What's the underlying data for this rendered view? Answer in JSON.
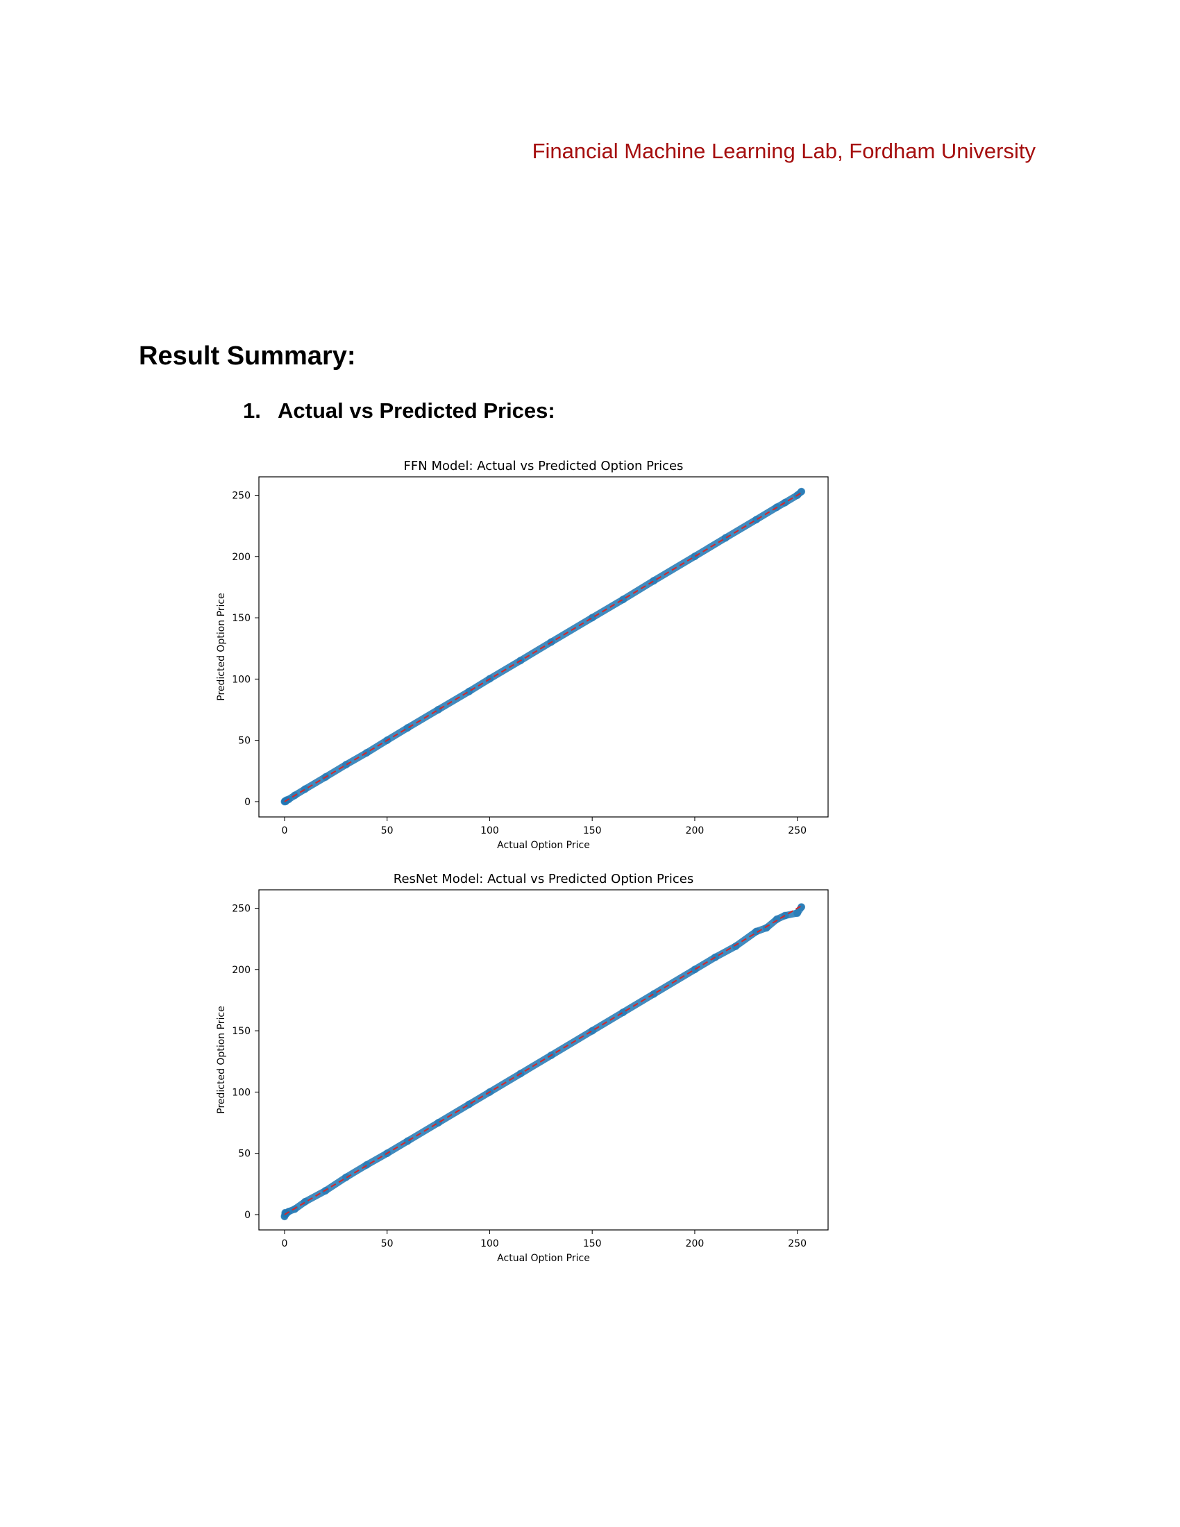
{
  "header": {
    "org": "Financial Machine Learning Lab, Fordham University"
  },
  "section": {
    "title": "Result Summary:"
  },
  "subsection": {
    "number": "1.",
    "title": "Actual vs Predicted Prices:"
  },
  "chart_data": [
    {
      "type": "scatter",
      "title": "FFN Model: Actual vs Predicted Option Prices",
      "xlabel": "Actual Option Price",
      "ylabel": "Predicted Option Price",
      "xlim": [
        -12.5,
        265
      ],
      "ylim": [
        -12.5,
        265
      ],
      "xticks": [
        0,
        50,
        100,
        150,
        200,
        250
      ],
      "yticks": [
        0,
        50,
        100,
        150,
        200,
        250
      ],
      "grid": false,
      "point_color": "#1f77b4",
      "reference_line": {
        "x": [
          0,
          252
        ],
        "y": [
          0,
          252
        ],
        "color": "#d62728",
        "style": "dashed"
      },
      "series": [
        {
          "x": [
            0,
            0.3,
            0.6,
            1,
            2,
            5,
            10,
            20,
            30,
            40,
            50,
            60,
            75,
            90,
            100,
            115,
            130,
            150,
            165,
            180,
            200,
            215,
            230,
            240,
            244,
            250,
            252
          ],
          "y": [
            0,
            0.5,
            0.2,
            1.2,
            1.8,
            5.1,
            10.2,
            20.1,
            30.2,
            39.8,
            50.1,
            60.2,
            75.1,
            89.9,
            100.2,
            115.1,
            130.2,
            150.1,
            164.9,
            180.2,
            200.1,
            215.2,
            230.1,
            240.2,
            244,
            250,
            253
          ]
        }
      ]
    },
    {
      "type": "scatter",
      "title": "ResNet Model: Actual vs Predicted Option Prices",
      "xlabel": "Actual Option Price",
      "ylabel": "Predicted Option Price",
      "xlim": [
        -12.5,
        265
      ],
      "ylim": [
        -12.5,
        265
      ],
      "xticks": [
        0,
        50,
        100,
        150,
        200,
        250
      ],
      "yticks": [
        0,
        50,
        100,
        150,
        200,
        250
      ],
      "grid": false,
      "point_color": "#1f77b4",
      "reference_line": {
        "x": [
          0,
          252
        ],
        "y": [
          0,
          252
        ],
        "color": "#d62728",
        "style": "dashed"
      },
      "series": [
        {
          "x": [
            0,
            0.3,
            0.5,
            1,
            2,
            5,
            10,
            20,
            30,
            40,
            50,
            60,
            75,
            90,
            100,
            115,
            130,
            150,
            165,
            180,
            200,
            210,
            220,
            230,
            235,
            240,
            244,
            250,
            252
          ],
          "y": [
            -1.5,
            1.5,
            0.2,
            1,
            2.5,
            4.5,
            10.5,
            19.5,
            30.5,
            40.5,
            50,
            60,
            75,
            90,
            100,
            115,
            130,
            150,
            165,
            180,
            200,
            210,
            219,
            231,
            234,
            241,
            244,
            246,
            251
          ]
        }
      ]
    }
  ]
}
